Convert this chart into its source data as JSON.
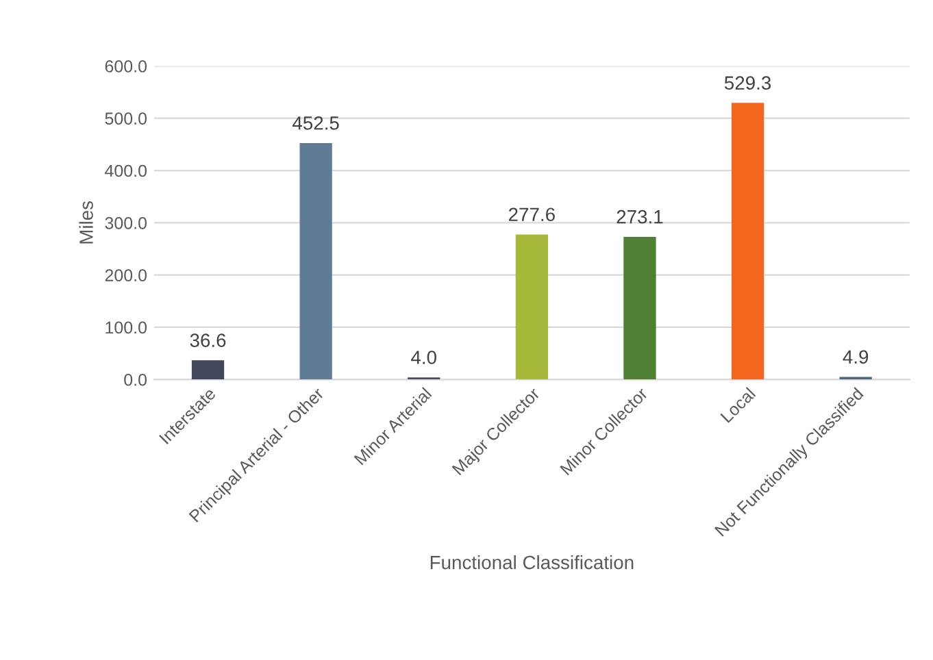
{
  "chart_data": {
    "type": "bar",
    "xlabel": "Functional Classification",
    "ylabel": "Miles",
    "categories": [
      "Interstate",
      "Principal Arterial - Other",
      "Minor Arterial",
      "Major Collector",
      "Minor Collector",
      "Local",
      "Not Functionally Classified"
    ],
    "values": [
      36.6,
      452.5,
      4.0,
      277.6,
      273.1,
      529.3,
      4.9
    ],
    "colors": [
      "#42465a",
      "#5f7b95",
      "#4a4d5c",
      "#a7b83a",
      "#4f7f32",
      "#f2661d",
      "#56687a"
    ],
    "value_labels": [
      "36.6",
      "452.5",
      "4.0",
      "277.6",
      "273.1",
      "529.3",
      "4.9"
    ],
    "ylim": [
      0,
      600
    ],
    "yticks": [
      {
        "value": 0,
        "label": "0.0"
      },
      {
        "value": 100,
        "label": "100.0"
      },
      {
        "value": 200,
        "label": "200.0"
      },
      {
        "value": 300,
        "label": "300.0"
      },
      {
        "value": 400,
        "label": "400.0"
      },
      {
        "value": 500,
        "label": "500.0"
      },
      {
        "value": 600,
        "label": "600.0"
      }
    ],
    "grid": "y",
    "legend": false
  }
}
